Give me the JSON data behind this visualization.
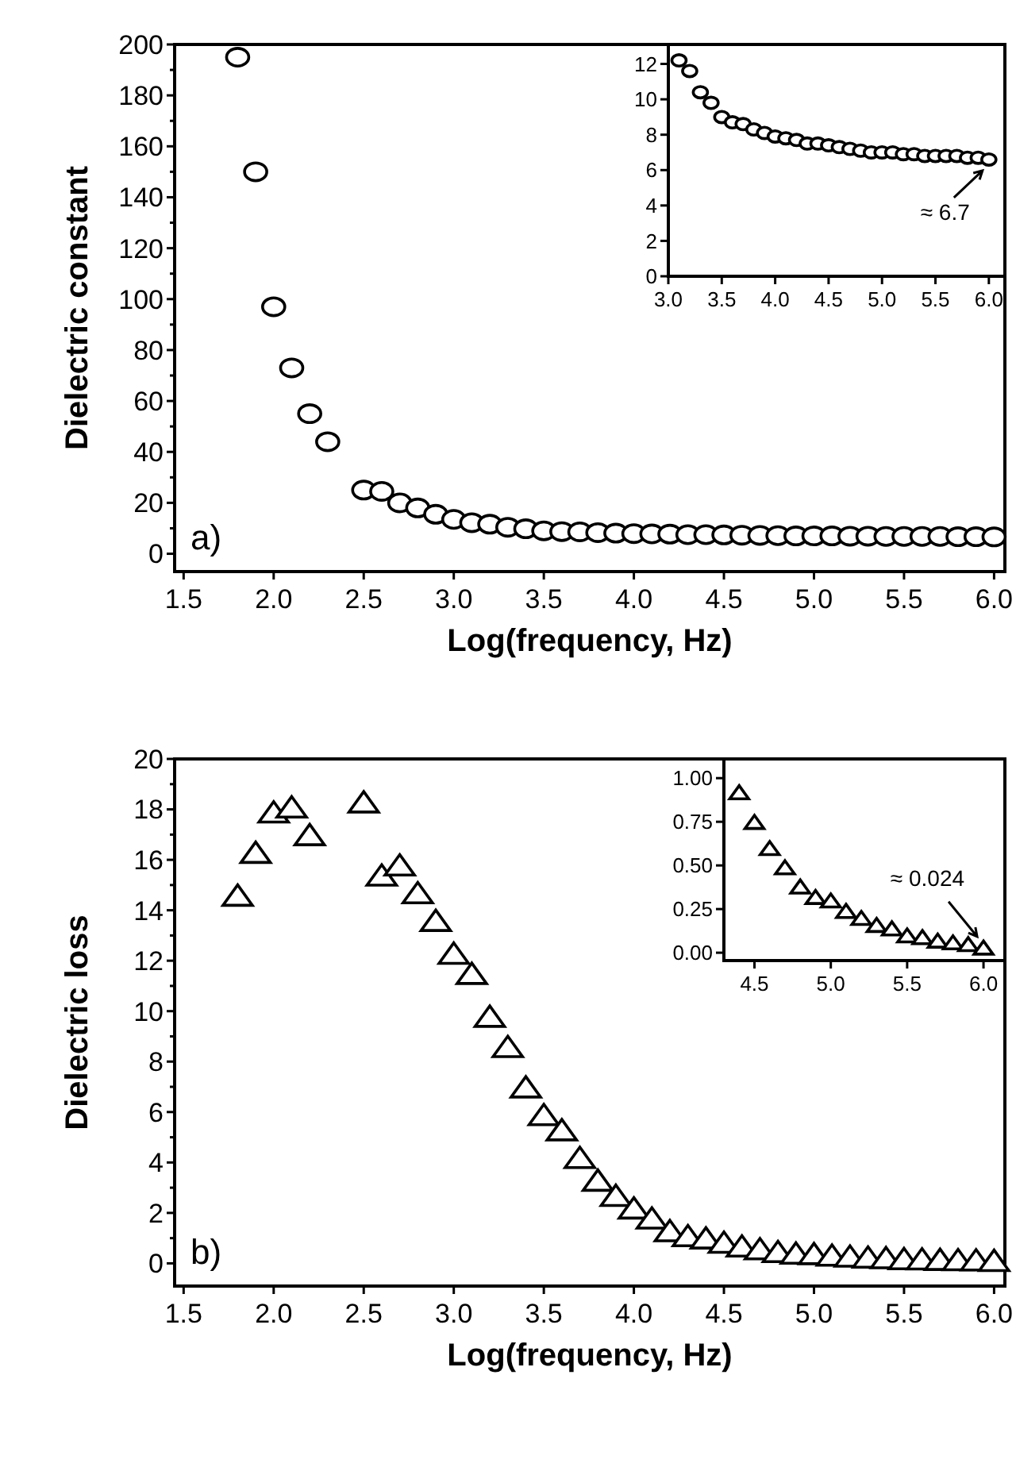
{
  "chart_data": [
    {
      "type": "scatter",
      "xlabel": "Log(frequency, Hz)",
      "ylabel": "Dielectric constant",
      "marker": "circle",
      "color": "#000000",
      "x": [
        1.8,
        1.9,
        2.0,
        2.1,
        2.2,
        2.3,
        2.5,
        2.6,
        2.7,
        2.8,
        2.9,
        3.0,
        3.1,
        3.2,
        3.3,
        3.4,
        3.5,
        3.6,
        3.7,
        3.8,
        3.9,
        4.0,
        4.1,
        4.2,
        4.3,
        4.4,
        4.5,
        4.6,
        4.7,
        4.8,
        4.9,
        5.0,
        5.1,
        5.2,
        5.3,
        5.4,
        5.5,
        5.6,
        5.7,
        5.8,
        5.9,
        6.0
      ],
      "values": [
        195,
        150,
        97,
        73,
        55,
        44,
        25,
        24.5,
        20,
        18,
        15.5,
        13.5,
        12.2,
        11.6,
        10.4,
        9.8,
        9.0,
        8.7,
        8.6,
        8.3,
        8.1,
        7.9,
        7.8,
        7.7,
        7.5,
        7.5,
        7.4,
        7.3,
        7.2,
        7.1,
        7.0,
        7.0,
        7.0,
        6.9,
        6.9,
        6.8,
        6.8,
        6.8,
        6.8,
        6.7,
        6.7,
        6.6
      ],
      "xlim": [
        1.45,
        6.06
      ],
      "ylim": [
        -7,
        200
      ],
      "xticks": [
        {
          "value": 1.5,
          "label": "1.5"
        },
        {
          "value": 2,
          "label": "2.0"
        },
        {
          "value": 2.5,
          "label": "2.5"
        },
        {
          "value": 3,
          "label": "3.0"
        },
        {
          "value": 3.5,
          "label": "3.5"
        },
        {
          "value": 4,
          "label": "4.0"
        },
        {
          "value": 4.5,
          "label": "4.5"
        },
        {
          "value": 5,
          "label": "5.0"
        },
        {
          "value": 5.5,
          "label": "5.5"
        },
        {
          "value": 6,
          "label": "6.0"
        }
      ],
      "yticks": [
        0,
        {
          "value": 10,
          "label": null
        },
        20,
        {
          "value": 30,
          "label": null
        },
        40,
        {
          "value": 50,
          "label": null
        },
        60,
        {
          "value": 70,
          "label": null
        },
        80,
        {
          "value": 90,
          "label": null
        },
        100,
        {
          "value": 110,
          "label": null
        },
        120,
        {
          "value": 130,
          "label": null
        },
        140,
        {
          "value": 150,
          "label": null
        },
        160,
        {
          "value": 170,
          "label": null
        },
        180,
        {
          "value": 190,
          "label": null
        },
        200
      ],
      "annotations": [
        "a)"
      ]
    },
    {
      "type": "scatter",
      "marker": "circle",
      "color": "#000000",
      "x": [
        3.1,
        3.2,
        3.3,
        3.4,
        3.5,
        3.6,
        3.7,
        3.8,
        3.9,
        4.0,
        4.1,
        4.2,
        4.3,
        4.4,
        4.5,
        4.6,
        4.7,
        4.8,
        4.9,
        5.0,
        5.1,
        5.2,
        5.3,
        5.4,
        5.5,
        5.6,
        5.7,
        5.8,
        5.9,
        6.0
      ],
      "values": [
        12.2,
        11.6,
        10.4,
        9.8,
        9.0,
        8.7,
        8.6,
        8.3,
        8.1,
        7.9,
        7.8,
        7.7,
        7.5,
        7.5,
        7.4,
        7.3,
        7.2,
        7.1,
        7.0,
        7.0,
        7.0,
        6.9,
        6.9,
        6.8,
        6.8,
        6.8,
        6.8,
        6.7,
        6.7,
        6.6
      ],
      "xlim": [
        3.0,
        6.15
      ],
      "ylim": [
        0,
        13.1
      ],
      "xticks": [
        {
          "value": 3,
          "label": "3.0"
        },
        {
          "value": 3.5,
          "label": "3.5"
        },
        {
          "value": 4,
          "label": "4.0"
        },
        {
          "value": 4.5,
          "label": "4.5"
        },
        {
          "value": 5,
          "label": "5.0"
        },
        {
          "value": 5.5,
          "label": "5.5"
        },
        {
          "value": 6,
          "label": "6.0"
        }
      ],
      "yticks": [
        0,
        2,
        4,
        6,
        8,
        10,
        12
      ],
      "annotations": [
        {
          "text": "≈ 6.7",
          "x": 6.0,
          "y": 6.6
        }
      ]
    },
    {
      "type": "scatter",
      "xlabel": "Log(frequency, Hz)",
      "ylabel": "Dielectric loss",
      "marker": "triangle",
      "color": "#000000",
      "x": [
        1.8,
        1.9,
        2.0,
        2.1,
        2.2,
        2.5,
        2.6,
        2.7,
        2.8,
        2.9,
        3.0,
        3.1,
        3.2,
        3.3,
        3.4,
        3.5,
        3.6,
        3.7,
        3.8,
        3.9,
        4.0,
        4.1,
        4.2,
        4.3,
        4.4,
        4.5,
        4.6,
        4.7,
        4.8,
        4.9,
        5.0,
        5.1,
        5.2,
        5.3,
        5.4,
        5.5,
        5.6,
        5.7,
        5.8,
        5.9,
        6.0
      ],
      "values": [
        14.5,
        16.2,
        17.8,
        18.0,
        16.9,
        18.2,
        15.3,
        15.7,
        14.6,
        13.5,
        12.2,
        11.4,
        9.7,
        8.5,
        6.9,
        5.8,
        5.2,
        4.1,
        3.2,
        2.6,
        2.1,
        1.7,
        1.2,
        1.0,
        0.91,
        0.74,
        0.59,
        0.48,
        0.37,
        0.31,
        0.29,
        0.23,
        0.19,
        0.15,
        0.13,
        0.09,
        0.08,
        0.06,
        0.05,
        0.04,
        0.02
      ],
      "xlim": [
        1.45,
        6.06
      ],
      "ylim": [
        -0.9,
        20
      ],
      "xticks": [
        {
          "value": 1.5,
          "label": "1.5"
        },
        {
          "value": 2,
          "label": "2.0"
        },
        {
          "value": 2.5,
          "label": "2.5"
        },
        {
          "value": 3,
          "label": "3.0"
        },
        {
          "value": 3.5,
          "label": "3.5"
        },
        {
          "value": 4,
          "label": "4.0"
        },
        {
          "value": 4.5,
          "label": "4.5"
        },
        {
          "value": 5,
          "label": "5.0"
        },
        {
          "value": 5.5,
          "label": "5.5"
        },
        {
          "value": 6,
          "label": "6.0"
        }
      ],
      "yticks": [
        0,
        {
          "value": 1,
          "label": null
        },
        2,
        {
          "value": 3,
          "label": null
        },
        4,
        {
          "value": 5,
          "label": null
        },
        6,
        {
          "value": 7,
          "label": null
        },
        8,
        {
          "value": 9,
          "label": null
        },
        10,
        {
          "value": 11,
          "label": null
        },
        12,
        {
          "value": 13,
          "label": null
        },
        14,
        {
          "value": 15,
          "label": null
        },
        16,
        {
          "value": 17,
          "label": null
        },
        18,
        {
          "value": 19,
          "label": null
        },
        20
      ],
      "annotations": [
        "b)"
      ]
    },
    {
      "type": "scatter",
      "marker": "triangle",
      "color": "#000000",
      "x": [
        4.4,
        4.5,
        4.6,
        4.7,
        4.8,
        4.9,
        5.0,
        5.1,
        5.2,
        5.3,
        5.4,
        5.5,
        5.6,
        5.7,
        5.8,
        5.9,
        6.0
      ],
      "values": [
        0.91,
        0.74,
        0.59,
        0.48,
        0.37,
        0.31,
        0.29,
        0.23,
        0.19,
        0.15,
        0.13,
        0.09,
        0.08,
        0.06,
        0.05,
        0.04,
        0.02
      ],
      "xlim": [
        4.3,
        6.14
      ],
      "ylim": [
        -0.045,
        1.11
      ],
      "xticks": [
        {
          "value": 4.5,
          "label": "4.5"
        },
        {
          "value": 5,
          "label": "5.0"
        },
        {
          "value": 5.5,
          "label": "5.5"
        },
        {
          "value": 6,
          "label": "6.0"
        }
      ],
      "yticks": [
        {
          "value": 0,
          "label": "0.00"
        },
        {
          "value": 0.25,
          "label": "0.25"
        },
        {
          "value": 0.5,
          "label": "0.50"
        },
        {
          "value": 0.75,
          "label": "0.75"
        },
        {
          "value": 1,
          "label": "1.00"
        }
      ],
      "annotations": [
        {
          "text": "≈ 0.024",
          "x": 6.0,
          "y": 0.02
        }
      ]
    }
  ]
}
